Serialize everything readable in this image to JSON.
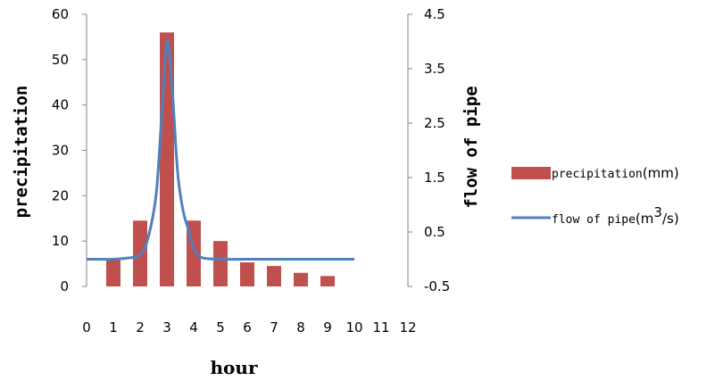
{
  "chart_data": {
    "type": "bar+line",
    "xlabel": "hour",
    "ylabel": "precipitation",
    "y2label": "flow of pipe",
    "ylim": [
      0,
      60
    ],
    "y2lim": [
      -0.5,
      4.5
    ],
    "xlim": [
      0,
      12
    ],
    "x_ticks": [
      "0",
      "1",
      "2",
      "3",
      "4",
      "5",
      "6",
      "7",
      "8",
      "9",
      "10",
      "11",
      "12"
    ],
    "y_ticks": [
      "60",
      "50",
      "40",
      "30",
      "20",
      "10",
      "0"
    ],
    "y2_ticks": [
      "4.5",
      "3.5",
      "2.5",
      "1.5",
      "0.5",
      "-0.5"
    ],
    "legend_position": "right",
    "series": [
      {
        "name": "precipitation",
        "unit": "mm",
        "kind": "bar",
        "color": "#c0504d",
        "x": [
          1,
          2,
          3,
          4,
          5,
          6,
          7,
          8,
          9
        ],
        "values": [
          6,
          14.5,
          56,
          14.5,
          10,
          5.3,
          4.5,
          3,
          2.3
        ]
      },
      {
        "name": "flow of pipe",
        "unit_prefix": "m",
        "unit_sup": "3",
        "unit_suffix": "/s",
        "kind": "line",
        "axis": "secondary",
        "color": "#4f81bd",
        "x": [
          0,
          1,
          1.5,
          2,
          2.3,
          2.6,
          2.8,
          3,
          3.2,
          3.4,
          3.6,
          3.8,
          4,
          4.3,
          5,
          6,
          7,
          8,
          9,
          10
        ],
        "values": [
          0,
          0,
          0.02,
          0.08,
          0.4,
          1.2,
          2.6,
          4.0,
          3.1,
          1.6,
          0.9,
          0.55,
          0.2,
          0.03,
          0,
          0,
          0,
          0,
          0,
          0
        ]
      }
    ]
  }
}
